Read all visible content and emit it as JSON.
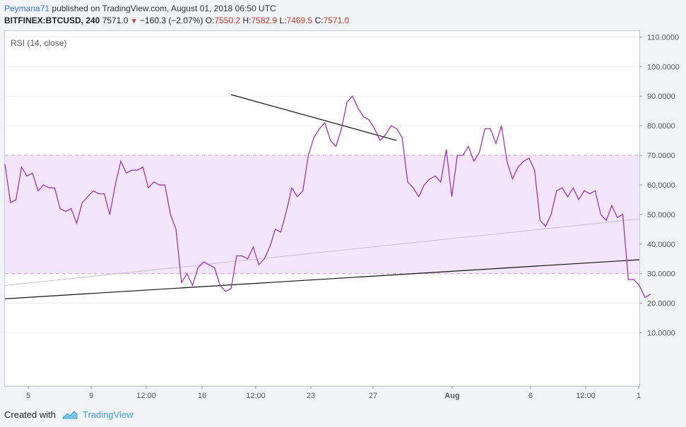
{
  "header": {
    "author": "Peymana71",
    "published_text": "published on TradingView.com, August 01, 2018 06:50 UTC",
    "symbol": "BITFINEX:BTCUSD, 240",
    "price": "7571.0",
    "change_icon": "down-triangle-icon",
    "change": "−160.3 (−2.07%)",
    "o_label": "O:",
    "o_value": "7550.2",
    "h_label": "H:",
    "h_value": "7582.9",
    "l_label": "L:",
    "l_value": "7469.5",
    "c_label": "C:",
    "c_value": "7571.0"
  },
  "footer": {
    "created_with": "Created with",
    "brand": "TradingView",
    "logo_icon": "tradingview-logo-icon"
  },
  "colors": {
    "rsi_line": "#9c27b0",
    "band_fill": "#f3e5fb",
    "band_border": "#c9a4d6",
    "trendline": "#111111",
    "faint_trendline": "#c8bfd0",
    "axis_text": "#555555",
    "grid": "#f0f0f0"
  },
  "chart_data": {
    "type": "line",
    "title": "RSI (14, close)",
    "y_ticks": [
      "10.0000",
      "20.0000",
      "30.0000",
      "40.0000",
      "50.0000",
      "60.0000",
      "70.0000",
      "80.0000",
      "90.0000",
      "100.0000",
      "110.0000"
    ],
    "x_ticks": [
      "5",
      "9",
      "12:00",
      "16",
      "12:00",
      "23",
      "27",
      "Aug",
      "6",
      "12:00",
      "1"
    ],
    "ylim": [
      -8,
      112
    ],
    "x_range": [
      0,
      115
    ],
    "bands": {
      "upper": 70,
      "lower": 30
    },
    "grid": true,
    "series": [
      {
        "values": [
          67,
          54,
          55,
          66,
          63,
          64,
          58,
          60,
          59,
          59,
          52,
          51,
          52,
          47,
          54,
          56,
          58,
          57,
          57,
          50,
          60,
          68,
          64,
          65,
          65,
          66,
          59,
          61,
          60,
          60,
          50,
          45,
          27,
          30,
          26,
          32,
          34,
          33,
          32,
          26,
          24,
          25,
          36,
          36,
          35,
          39,
          33,
          35,
          39,
          45,
          44,
          51,
          59,
          56,
          58,
          70,
          76,
          79,
          81,
          75,
          73,
          79,
          88,
          90,
          86,
          83,
          82,
          79,
          75,
          77,
          80,
          79,
          76,
          61,
          59,
          56,
          60,
          62,
          63,
          61,
          72,
          56,
          70,
          70,
          73,
          68,
          71,
          79,
          79,
          74,
          80,
          68,
          62,
          66,
          68,
          69,
          65,
          48,
          46,
          50,
          58,
          59,
          56,
          59,
          55,
          58,
          57,
          58,
          50,
          48,
          53,
          49,
          50,
          28,
          28,
          26,
          22,
          23
        ]
      }
    ],
    "trendlines": [
      {
        "kind": "solid",
        "from": [
          0,
          21.5
        ],
        "to": [
          115,
          34.7
        ]
      },
      {
        "kind": "faint",
        "from": [
          0,
          26
        ],
        "to": [
          115,
          48.5
        ]
      },
      {
        "kind": "solid",
        "from": [
          41,
          90.5
        ],
        "to": [
          71,
          75
        ]
      }
    ]
  }
}
